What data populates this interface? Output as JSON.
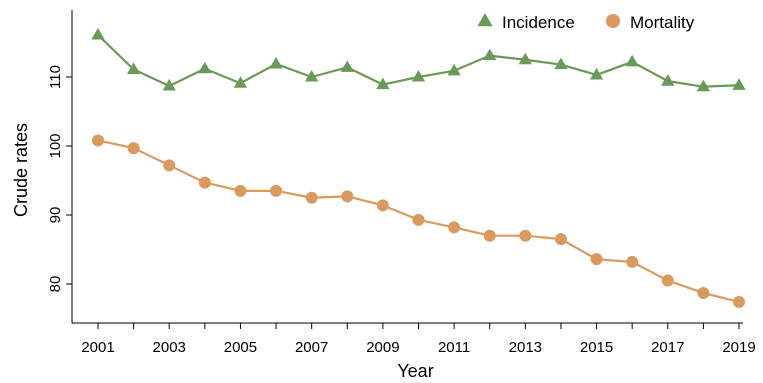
{
  "chart_data": {
    "type": "line",
    "xlabel": "Year",
    "ylabel": "Crude rates",
    "x": [
      2001,
      2002,
      2003,
      2004,
      2005,
      2006,
      2007,
      2008,
      2009,
      2010,
      2011,
      2012,
      2013,
      2014,
      2015,
      2016,
      2017,
      2018,
      2019
    ],
    "x_ticks": [
      "2001",
      "2003",
      "2005",
      "2007",
      "2009",
      "2011",
      "2013",
      "2015",
      "2017",
      "2019"
    ],
    "y_ticks": [
      "80",
      "90",
      "100",
      "110"
    ],
    "xlim": [
      2001,
      2019
    ],
    "ylim": [
      76,
      118
    ],
    "grid": false,
    "legend_position": "top-right",
    "series": [
      {
        "name": "Incidence",
        "marker": "triangle",
        "color": "#6a9a58",
        "values": [
          116.1,
          111.1,
          108.7,
          111.2,
          109.1,
          111.9,
          110.0,
          111.4,
          108.9,
          110.0,
          110.9,
          113.1,
          112.5,
          111.8,
          110.3,
          112.2,
          109.4,
          108.6,
          108.8
        ]
      },
      {
        "name": "Mortality",
        "marker": "circle",
        "color": "#da9a5e",
        "values": [
          100.8,
          99.7,
          97.2,
          94.7,
          93.5,
          93.5,
          92.5,
          92.7,
          91.4,
          89.3,
          88.2,
          87.0,
          87.0,
          86.5,
          83.6,
          83.2,
          80.5,
          78.7,
          77.4
        ]
      }
    ]
  }
}
